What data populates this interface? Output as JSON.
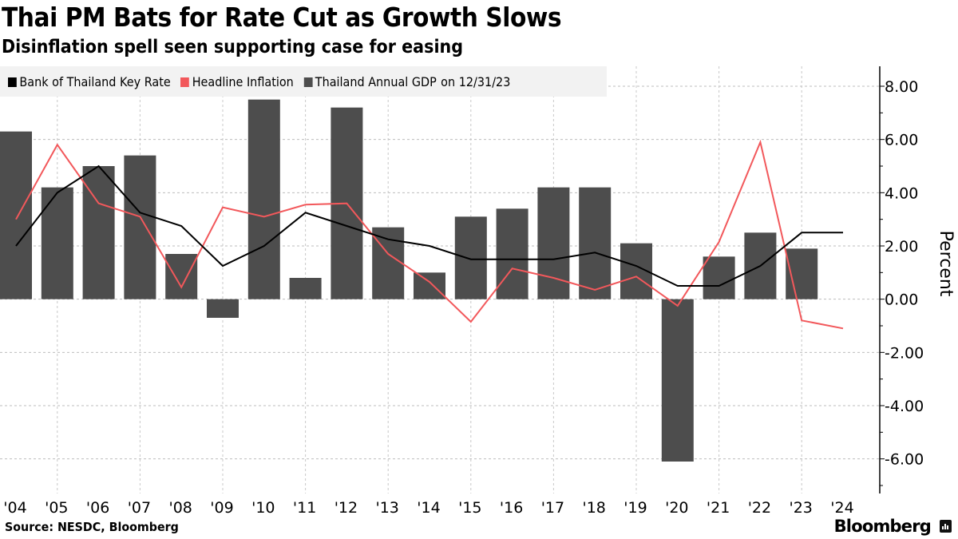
{
  "header": {
    "title": "Thai PM Bats for Rate Cut as Growth Slows",
    "subtitle": "Disinflation spell seen supporting case for easing"
  },
  "legend": {
    "items": [
      {
        "label": "Bank of Thailand Key Rate",
        "color": "#000000"
      },
      {
        "label": "Headline Inflation",
        "color": "#f2585b"
      },
      {
        "label": "Thailand Annual GDP",
        "color": "#4d4d4d"
      }
    ],
    "date_note": "on 12/31/23"
  },
  "footer": {
    "source": "Source: NESDC, Bloomberg",
    "brand": "Bloomberg",
    "brand_icon": "bloomberg-chart-icon"
  },
  "chart_data": {
    "type": "bar",
    "title": "Thai PM Bats for Rate Cut as Growth Slows",
    "subtitle": "Disinflation spell seen supporting case for easing",
    "xlabel": "",
    "ylabel": "Percent",
    "ylim": [
      -7.3,
      8.75
    ],
    "yticks": [
      8,
      6,
      4,
      2,
      0,
      -2,
      -4,
      -6
    ],
    "ytick_labels": [
      "8.00",
      "6.00",
      "4.00",
      "2.00",
      "0.00",
      "-2.00",
      "-4.00",
      "-6.00"
    ],
    "grid": true,
    "legend_position": "top-left",
    "categories": [
      "'04",
      "'05",
      "'06",
      "'07",
      "'08",
      "'09",
      "'10",
      "'11",
      "'12",
      "'13",
      "'14",
      "'15",
      "'16",
      "'17",
      "'18",
      "'19",
      "'20",
      "'21",
      "'22",
      "'23",
      "'24"
    ],
    "series": [
      {
        "name": "Thailand Annual GDP",
        "type": "bar",
        "color": "#4d4d4d",
        "values": [
          6.3,
          4.2,
          5.0,
          5.4,
          1.7,
          -0.7,
          7.5,
          0.8,
          7.2,
          2.7,
          1.0,
          3.1,
          3.4,
          4.2,
          4.2,
          2.1,
          -6.1,
          1.6,
          2.5,
          1.9,
          null
        ]
      },
      {
        "name": "Bank of Thailand Key Rate",
        "type": "line",
        "color": "#000000",
        "values": [
          2.0,
          4.0,
          5.0,
          3.25,
          2.75,
          1.25,
          2.0,
          3.25,
          2.75,
          2.25,
          2.0,
          1.5,
          1.5,
          1.5,
          1.75,
          1.25,
          0.5,
          0.5,
          1.25,
          2.5,
          2.5
        ]
      },
      {
        "name": "Headline Inflation",
        "type": "line",
        "color": "#f2585b",
        "values": [
          3.0,
          5.8,
          3.6,
          3.1,
          0.45,
          3.45,
          3.1,
          3.55,
          3.6,
          1.7,
          0.65,
          -0.85,
          1.15,
          0.8,
          0.35,
          0.85,
          -0.25,
          2.15,
          5.9,
          -0.8,
          -1.1
        ]
      }
    ]
  }
}
